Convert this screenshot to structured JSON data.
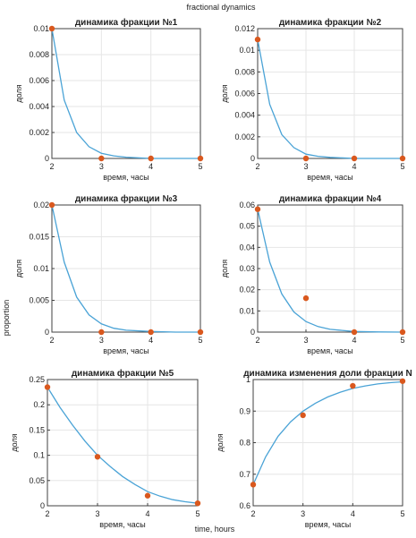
{
  "figure": {
    "title": "fractional dynamics",
    "ylabel": "proportion",
    "xlabel": "time, hours"
  },
  "colors": {
    "line": "#4aa3d6",
    "points": "#d9581e",
    "axes": "#404040",
    "grid": "#e6e6e6"
  },
  "chart_data": [
    {
      "type": "line",
      "title": "динамика фракции №1",
      "xlabel": "время, часы",
      "ylabel": "доля",
      "xlim": [
        2,
        5
      ],
      "ylim": [
        0,
        0.01
      ],
      "xticks": [
        2,
        3,
        4,
        5
      ],
      "yticks": [
        0,
        0.002,
        0.004,
        0.006,
        0.008,
        0.01
      ],
      "yticklabels": [
        "0",
        "0.002",
        "0.004",
        "0.006",
        "0.008",
        "0.01"
      ],
      "grid": true,
      "points": {
        "x": [
          2,
          3,
          4,
          5
        ],
        "y": [
          0.01,
          0.0,
          0.0,
          0.0
        ]
      },
      "fit": {
        "x": [
          2,
          2.25,
          2.5,
          2.75,
          3,
          3.25,
          3.5,
          4,
          4.5,
          5
        ],
        "y": [
          0.01,
          0.0045,
          0.002,
          0.0009,
          0.0004,
          0.0002,
          0.0001,
          0.0,
          0.0,
          0.0
        ]
      }
    },
    {
      "type": "line",
      "title": "динамика фракции №2",
      "xlabel": "время, часы",
      "ylabel": "доля",
      "xlim": [
        2,
        5
      ],
      "ylim": [
        0,
        0.012
      ],
      "xticks": [
        2,
        3,
        4,
        5
      ],
      "yticks": [
        0,
        0.002,
        0.004,
        0.006,
        0.008,
        0.01,
        0.012
      ],
      "yticklabels": [
        "0",
        "0.002",
        "0.004",
        "0.006",
        "0.008",
        "0.01",
        "0.012"
      ],
      "grid": true,
      "points": {
        "x": [
          2,
          3,
          4,
          5
        ],
        "y": [
          0.011,
          0.0,
          0.0,
          0.0
        ]
      },
      "fit": {
        "x": [
          2,
          2.25,
          2.5,
          2.75,
          3,
          3.25,
          3.5,
          4,
          4.5,
          5
        ],
        "y": [
          0.011,
          0.005,
          0.0022,
          0.001,
          0.0004,
          0.0002,
          0.0001,
          0.0,
          0.0,
          0.0
        ]
      }
    },
    {
      "type": "line",
      "title": "динамика фракции №3",
      "xlabel": "время, часы",
      "ylabel": "доля",
      "xlim": [
        2,
        5
      ],
      "ylim": [
        0,
        0.02
      ],
      "xticks": [
        2,
        3,
        4,
        5
      ],
      "yticks": [
        0,
        0.005,
        0.01,
        0.015,
        0.02
      ],
      "yticklabels": [
        "0",
        "0.005",
        "0.01",
        "0.015",
        "0.02"
      ],
      "grid": true,
      "points": {
        "x": [
          2,
          3,
          4,
          5
        ],
        "y": [
          0.02,
          0.0,
          0.0,
          0.0
        ]
      },
      "fit": {
        "x": [
          2,
          2.25,
          2.5,
          2.75,
          3,
          3.25,
          3.5,
          4,
          4.5,
          5
        ],
        "y": [
          0.02,
          0.011,
          0.0055,
          0.0027,
          0.0013,
          0.0006,
          0.0003,
          0.0001,
          0.0,
          0.0
        ]
      }
    },
    {
      "type": "line",
      "title": "динамика фракции №4",
      "xlabel": "время, часы",
      "ylabel": "доля",
      "xlim": [
        2,
        5
      ],
      "ylim": [
        0,
        0.06
      ],
      "xticks": [
        2,
        3,
        4,
        5
      ],
      "yticks": [
        0,
        0.01,
        0.02,
        0.03,
        0.04,
        0.05,
        0.06
      ],
      "yticklabels": [
        "0",
        "0.01",
        "0.02",
        "0.03",
        "0.04",
        "0.05",
        "0.06"
      ],
      "grid": true,
      "points": {
        "x": [
          2,
          3,
          4,
          5
        ],
        "y": [
          0.058,
          0.016,
          0.0,
          0.0
        ]
      },
      "fit": {
        "x": [
          2,
          2.25,
          2.5,
          2.75,
          3,
          3.25,
          3.5,
          4,
          4.5,
          5
        ],
        "y": [
          0.058,
          0.033,
          0.018,
          0.0095,
          0.005,
          0.0026,
          0.0013,
          0.0003,
          0.0001,
          0.0
        ]
      }
    },
    {
      "type": "line",
      "title": "динамика фракции №5",
      "xlabel": "время, часы",
      "ylabel": "доля",
      "xlim": [
        2,
        5
      ],
      "ylim": [
        0,
        0.25
      ],
      "xticks": [
        2,
        3,
        4,
        5
      ],
      "yticks": [
        0,
        0.05,
        0.1,
        0.15,
        0.2,
        0.25
      ],
      "yticklabels": [
        "0",
        "0.05",
        "0.1",
        "0.15",
        "0.2",
        "0.25"
      ],
      "grid": true,
      "points": {
        "x": [
          2,
          3,
          4,
          5
        ],
        "y": [
          0.235,
          0.097,
          0.02,
          0.005
        ]
      },
      "fit": {
        "x": [
          2,
          2.25,
          2.5,
          2.75,
          3,
          3.25,
          3.5,
          3.75,
          4,
          4.25,
          4.5,
          4.75,
          5
        ],
        "y": [
          0.235,
          0.195,
          0.16,
          0.128,
          0.1,
          0.078,
          0.058,
          0.042,
          0.028,
          0.019,
          0.012,
          0.008,
          0.005
        ]
      }
    },
    {
      "type": "line",
      "title": "динамика изменения доли фракции N",
      "xlabel": "время, часы",
      "ylabel": "доля",
      "xlim": [
        2,
        5
      ],
      "ylim": [
        0.6,
        1
      ],
      "xticks": [
        2,
        3,
        4,
        5
      ],
      "yticks": [
        0.6,
        0.7,
        0.8,
        0.9,
        1
      ],
      "yticklabels": [
        "0.6",
        "0.7",
        "0.8",
        "0.9",
        "1"
      ],
      "grid": true,
      "points": {
        "x": [
          2,
          3,
          4,
          5
        ],
        "y": [
          0.667,
          0.887,
          0.98,
          0.995
        ]
      },
      "fit": {
        "x": [
          2,
          2.25,
          2.5,
          2.75,
          3,
          3.25,
          3.5,
          3.75,
          4,
          4.25,
          4.5,
          4.75,
          5
        ],
        "y": [
          0.667,
          0.755,
          0.82,
          0.866,
          0.9,
          0.925,
          0.945,
          0.96,
          0.972,
          0.98,
          0.986,
          0.99,
          0.993
        ]
      }
    }
  ]
}
